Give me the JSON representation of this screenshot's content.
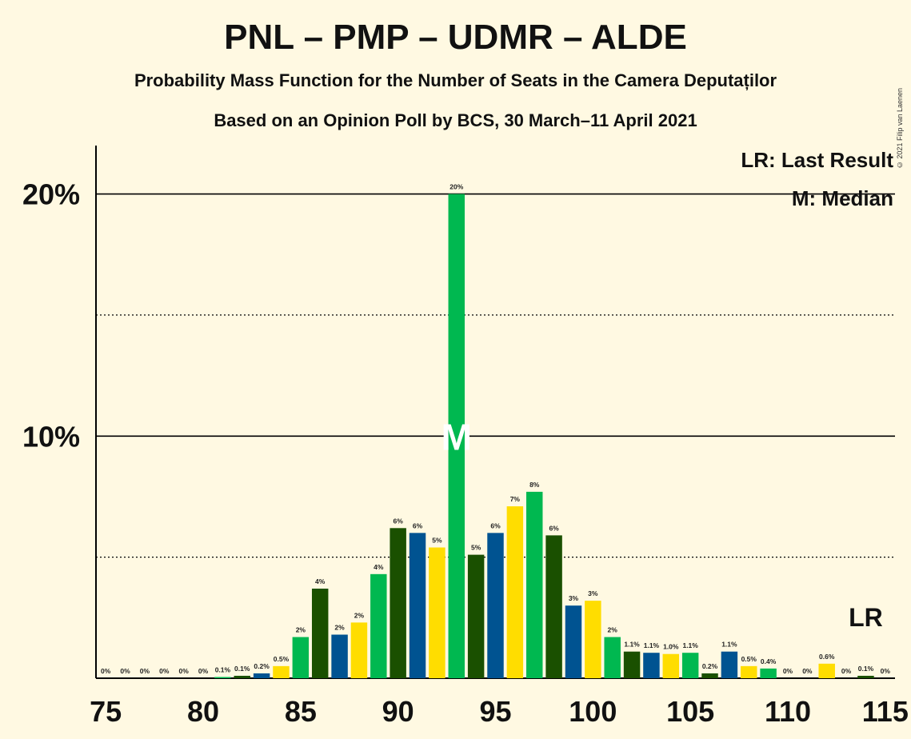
{
  "title": "PNL – PMP – UDMR – ALDE",
  "subtitle": "Probability Mass Function for the Number of Seats in the Camera Deputaților",
  "subtitle2": "Based on an Opinion Poll by BCS, 30 March–11 April 2021",
  "copyright": "© 2021 Filip van Laenen",
  "legend": {
    "lr": "LR: Last Result",
    "m": "M: Median"
  },
  "lr_marker": "LR",
  "median_marker": "M",
  "colors": {
    "background": "#FFF9E2",
    "dark_green": "#1A5000",
    "blue": "#005391",
    "yellow": "#FFDD00",
    "green": "#00B850"
  },
  "chart_data": {
    "type": "bar",
    "x": [
      75,
      76,
      77,
      78,
      79,
      80,
      81,
      82,
      83,
      84,
      85,
      86,
      87,
      88,
      89,
      90,
      91,
      92,
      93,
      94,
      95,
      96,
      97,
      98,
      99,
      100,
      101,
      102,
      103,
      104,
      105,
      106,
      107,
      108,
      109,
      110,
      111,
      112,
      113,
      114,
      115
    ],
    "values": [
      0,
      0,
      0,
      0,
      0,
      0,
      0.05,
      0.1,
      0.2,
      0.5,
      1.7,
      3.7,
      1.8,
      2.3,
      4.3,
      6.2,
      6.0,
      5.4,
      20.0,
      5.1,
      6.0,
      7.1,
      7.7,
      5.9,
      3.0,
      3.2,
      1.7,
      1.1,
      1.05,
      1.0,
      1.05,
      0.2,
      1.1,
      0.5,
      0.4,
      0,
      0,
      0.6,
      0,
      0.1,
      0
    ],
    "labels": [
      "0%",
      "0%",
      "0%",
      "0%",
      "0%",
      "0%",
      "0.1%",
      "0.1%",
      "0.2%",
      "0.5%",
      "2%",
      "4%",
      "2%",
      "2%",
      "4%",
      "6%",
      "6%",
      "5%",
      "20%",
      "5%",
      "6%",
      "7%",
      "8%",
      "6%",
      "3%",
      "3%",
      "2%",
      "1.1%",
      "1.1%",
      "1.0%",
      "1.1%",
      "0.2%",
      "1.1%",
      "0.5%",
      "0.4%",
      "0%",
      "0%",
      "0.6%",
      "0%",
      "0.1%",
      "0%"
    ],
    "x_ticks": [
      75,
      80,
      85,
      90,
      95,
      100,
      105,
      110,
      115
    ],
    "x_tick_labels": [
      "75",
      "80",
      "85",
      "90",
      "95",
      "100",
      "105",
      "110",
      "115"
    ],
    "y_ticks": [
      10,
      20
    ],
    "y_tick_labels": [
      "10%",
      "20%"
    ],
    "y_dotted_lines": [
      5,
      15
    ],
    "ylim": [
      0,
      22
    ],
    "xlim": [
      74.5,
      115.5
    ],
    "last_result": 114,
    "median": 93
  }
}
